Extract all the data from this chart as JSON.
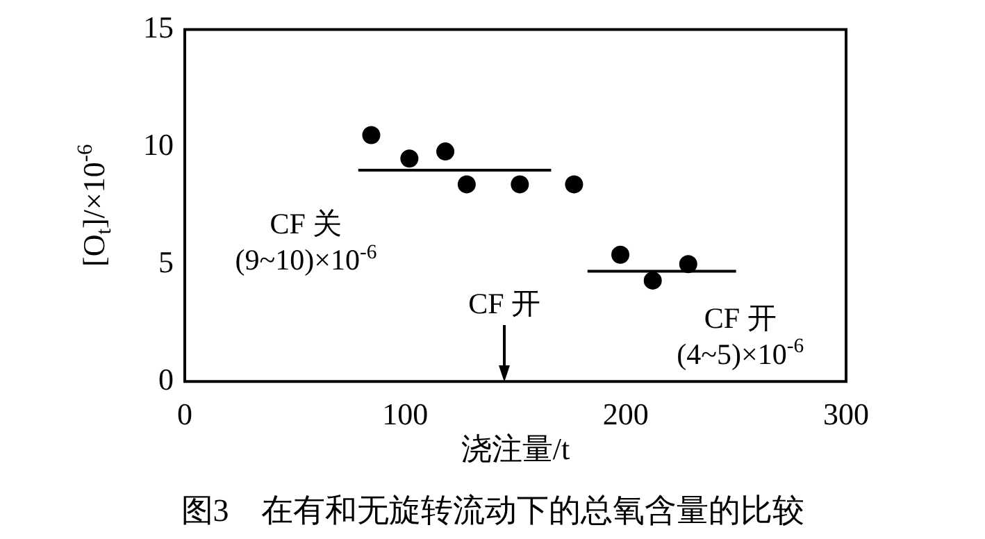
{
  "chart_data": {
    "type": "scatter",
    "xlabel": "浇注量/t",
    "ylabel": "[O$_{t}$]/×10$^{-6}$",
    "xlim": [
      0,
      300
    ],
    "xticks": [
      0,
      100,
      200,
      300
    ],
    "ylim": [
      0,
      15
    ],
    "yticks": [
      0,
      5,
      10,
      15
    ],
    "grid": false,
    "legend": false,
    "series": [
      {
        "color": "#000000",
        "marker": "circle",
        "x": [
          84.6,
          101.9,
          118.2,
          127.9,
          152,
          176.6,
          197.6,
          212.3,
          228.4
        ],
        "values": [
          10.5,
          9.5,
          9.8,
          8.4,
          8.4,
          8.4,
          5.4,
          4.3,
          5.0
        ]
      },
      {
        "type": "line",
        "marker": "none",
        "color": "#000000",
        "x": [
          78.7,
          166.2
        ],
        "values": [
          9.0,
          9.0
        ]
      },
      {
        "type": "line",
        "marker": "none",
        "color": "#000000",
        "x": [
          182.7,
          250.1
        ],
        "values": [
          4.7,
          4.7
        ]
      }
    ],
    "annotations": [
      "CF 关\n(9~10)×10$^{-6}$",
      "CF 开",
      "CF 开\n(4~5)×10$^{-6}$",
      "图3　在有和无旋转流动下的总氧含量的比较"
    ]
  }
}
